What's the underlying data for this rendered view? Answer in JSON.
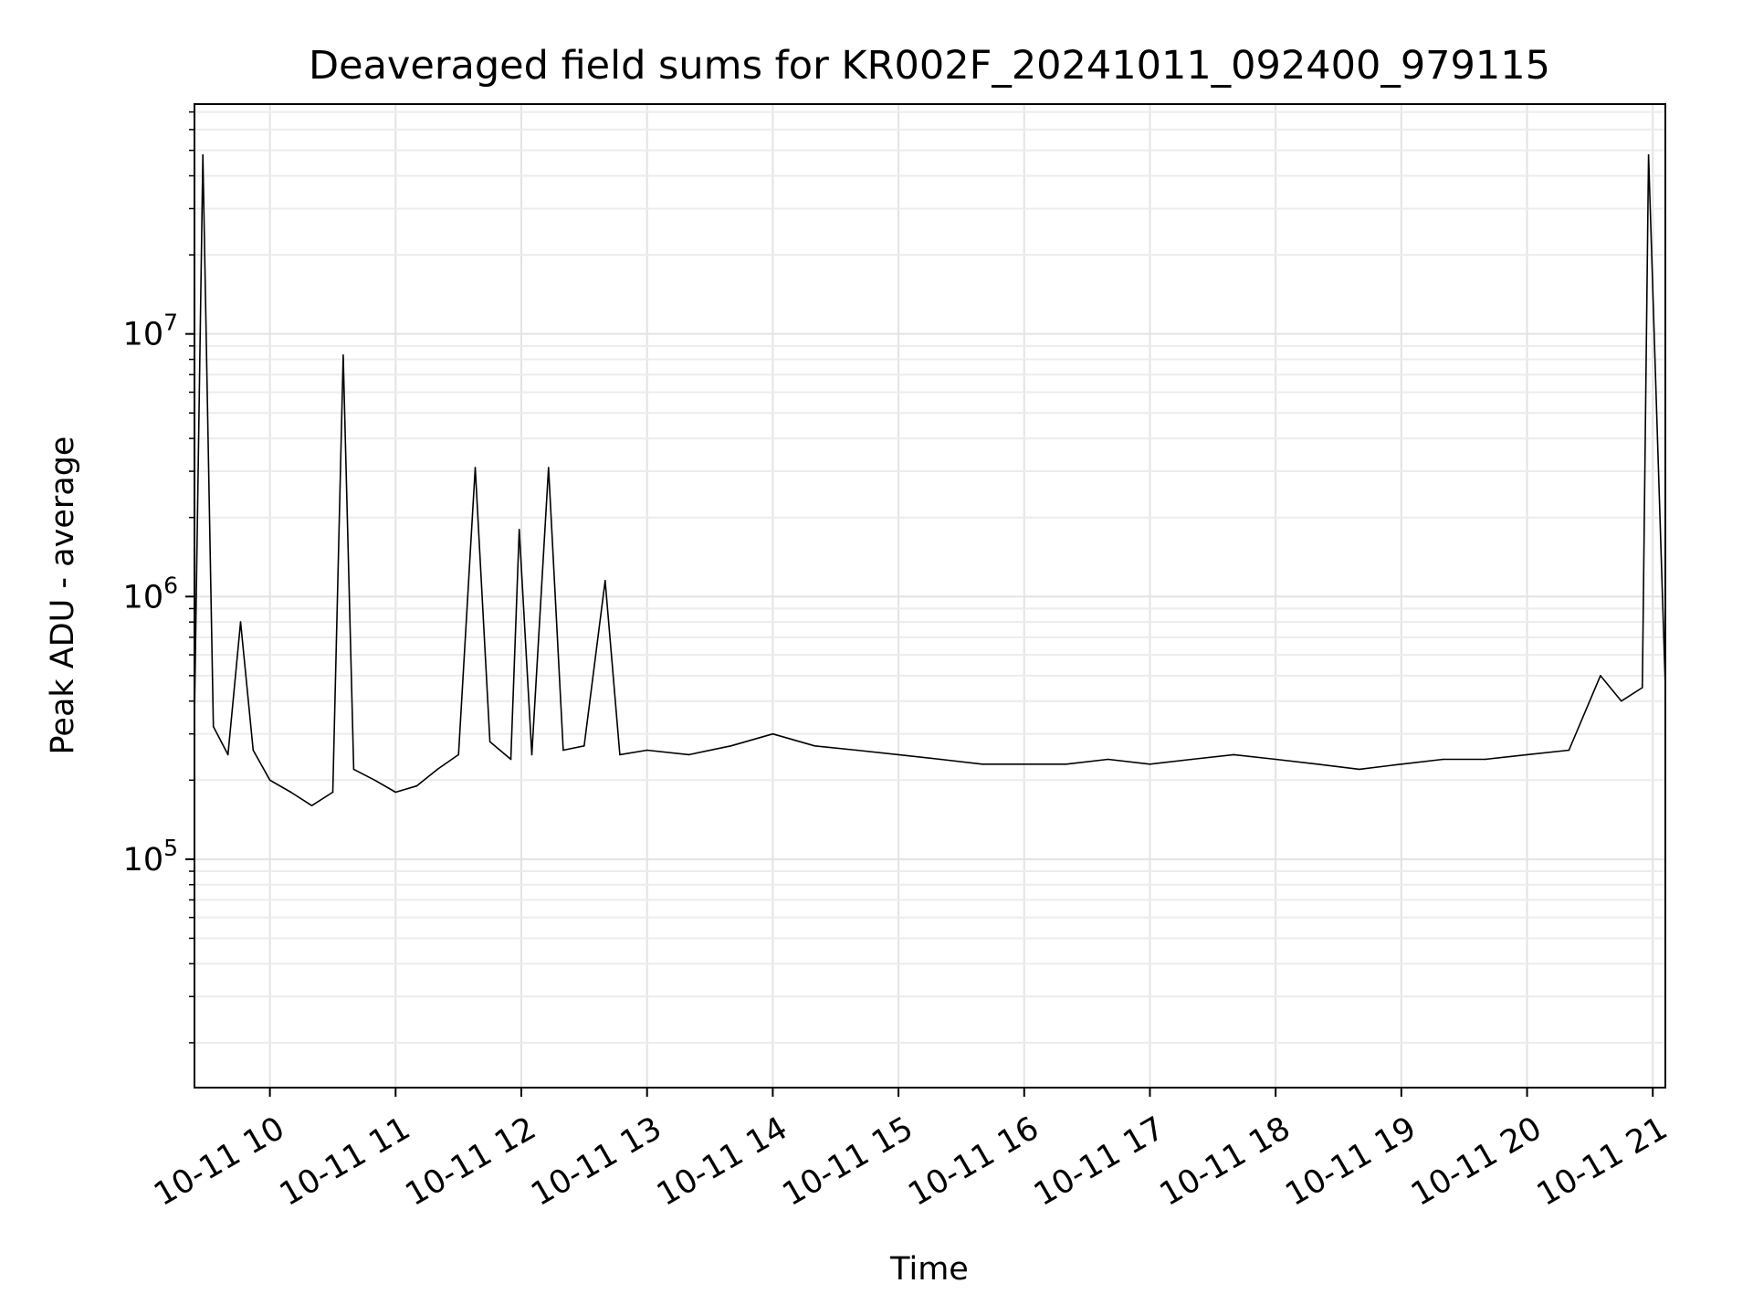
{
  "chart_data": {
    "type": "line",
    "title": "Deaveraged field sums for KR002F_20241011_092400_979115",
    "xlabel": "Time",
    "ylabel": "Peak ADU - average",
    "xlim": [
      "2024-10-11 09:24",
      "2024-10-11 21:06"
    ],
    "ylim": [
      13500,
      75000000
    ],
    "y_scale": "log",
    "grid": true,
    "x_tick_labels": [
      "10-11 10",
      "10-11 11",
      "10-11 12",
      "10-11 13",
      "10-11 14",
      "10-11 15",
      "10-11 16",
      "10-11 17",
      "10-11 18",
      "10-11 19",
      "10-11 20",
      "10-11 21"
    ],
    "y_tick_labels": [
      {
        "base": "10",
        "exp": "5",
        "value": 100000
      },
      {
        "base": "10",
        "exp": "6",
        "value": 1000000
      },
      {
        "base": "10",
        "exp": "7",
        "value": 10000000
      }
    ],
    "series": [
      {
        "color": "#000000",
        "x": [
          "2024-10-11 09:24",
          "2024-10-11 09:28",
          "2024-10-11 09:33",
          "2024-10-11 09:40",
          "2024-10-11 09:46",
          "2024-10-11 09:52",
          "2024-10-11 10:00",
          "2024-10-11 10:10",
          "2024-10-11 10:20",
          "2024-10-11 10:30",
          "2024-10-11 10:35",
          "2024-10-11 10:40",
          "2024-10-11 10:50",
          "2024-10-11 11:00",
          "2024-10-11 11:10",
          "2024-10-11 11:20",
          "2024-10-11 11:30",
          "2024-10-11 11:38",
          "2024-10-11 11:45",
          "2024-10-11 11:55",
          "2024-10-11 11:59",
          "2024-10-11 12:05",
          "2024-10-11 12:13",
          "2024-10-11 12:20",
          "2024-10-11 12:30",
          "2024-10-11 12:40",
          "2024-10-11 12:47",
          "2024-10-11 13:00",
          "2024-10-11 13:20",
          "2024-10-11 13:40",
          "2024-10-11 14:00",
          "2024-10-11 14:20",
          "2024-10-11 14:40",
          "2024-10-11 15:00",
          "2024-10-11 15:20",
          "2024-10-11 15:40",
          "2024-10-11 16:00",
          "2024-10-11 16:20",
          "2024-10-11 16:40",
          "2024-10-11 17:00",
          "2024-10-11 17:20",
          "2024-10-11 17:40",
          "2024-10-11 18:00",
          "2024-10-11 18:20",
          "2024-10-11 18:40",
          "2024-10-11 19:00",
          "2024-10-11 19:20",
          "2024-10-11 19:40",
          "2024-10-11 20:00",
          "2024-10-11 20:20",
          "2024-10-11 20:35",
          "2024-10-11 20:45",
          "2024-10-11 20:55",
          "2024-10-11 20:58",
          "2024-10-11 21:06"
        ],
        "y": [
          350000,
          48000000,
          320000,
          250000,
          800000,
          260000,
          200000,
          180000,
          160000,
          180000,
          8300000,
          220000,
          200000,
          180000,
          190000,
          220000,
          250000,
          3100000,
          280000,
          240000,
          1800000,
          250000,
          3100000,
          260000,
          270000,
          1150000,
          250000,
          260000,
          250000,
          270000,
          300000,
          270000,
          260000,
          250000,
          240000,
          230000,
          230000,
          230000,
          240000,
          230000,
          240000,
          250000,
          240000,
          230000,
          220000,
          230000,
          240000,
          240000,
          250000,
          260000,
          500000,
          400000,
          450000,
          48000000,
          450000
        ]
      }
    ]
  }
}
